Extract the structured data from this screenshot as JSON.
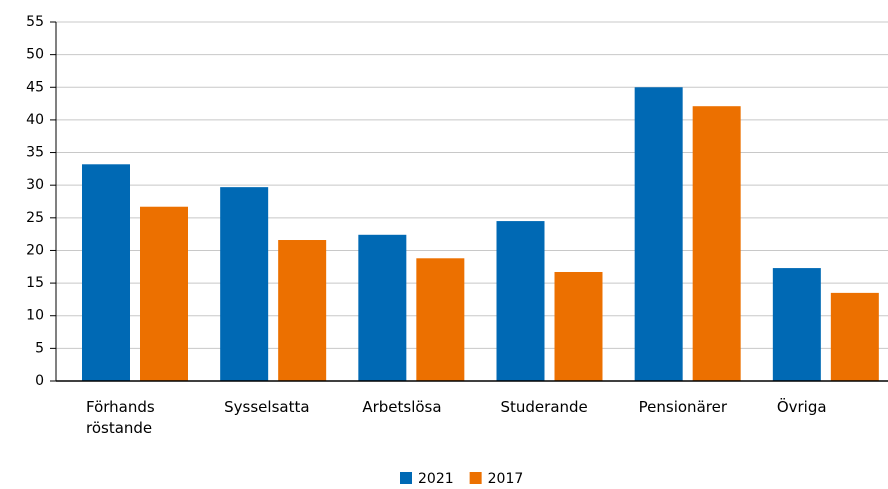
{
  "chart_data": {
    "type": "bar",
    "categories": [
      "Förhands röstande",
      "Sysselsatta",
      "Arbetslösa",
      "Studerande",
      "Pensionärer",
      "Övriga"
    ],
    "series": [
      {
        "name": "2021",
        "color": "#0069b4",
        "values": [
          33.2,
          29.7,
          22.4,
          24.5,
          45.0,
          17.3
        ]
      },
      {
        "name": "2017",
        "color": "#ec7000",
        "values": [
          26.7,
          21.6,
          18.8,
          16.7,
          42.1,
          13.5
        ]
      }
    ],
    "ylim": [
      0,
      55
    ],
    "yticks": [
      0,
      5,
      10,
      15,
      20,
      25,
      30,
      35,
      40,
      45,
      50,
      55
    ],
    "grid": true,
    "legend": "bottom"
  }
}
